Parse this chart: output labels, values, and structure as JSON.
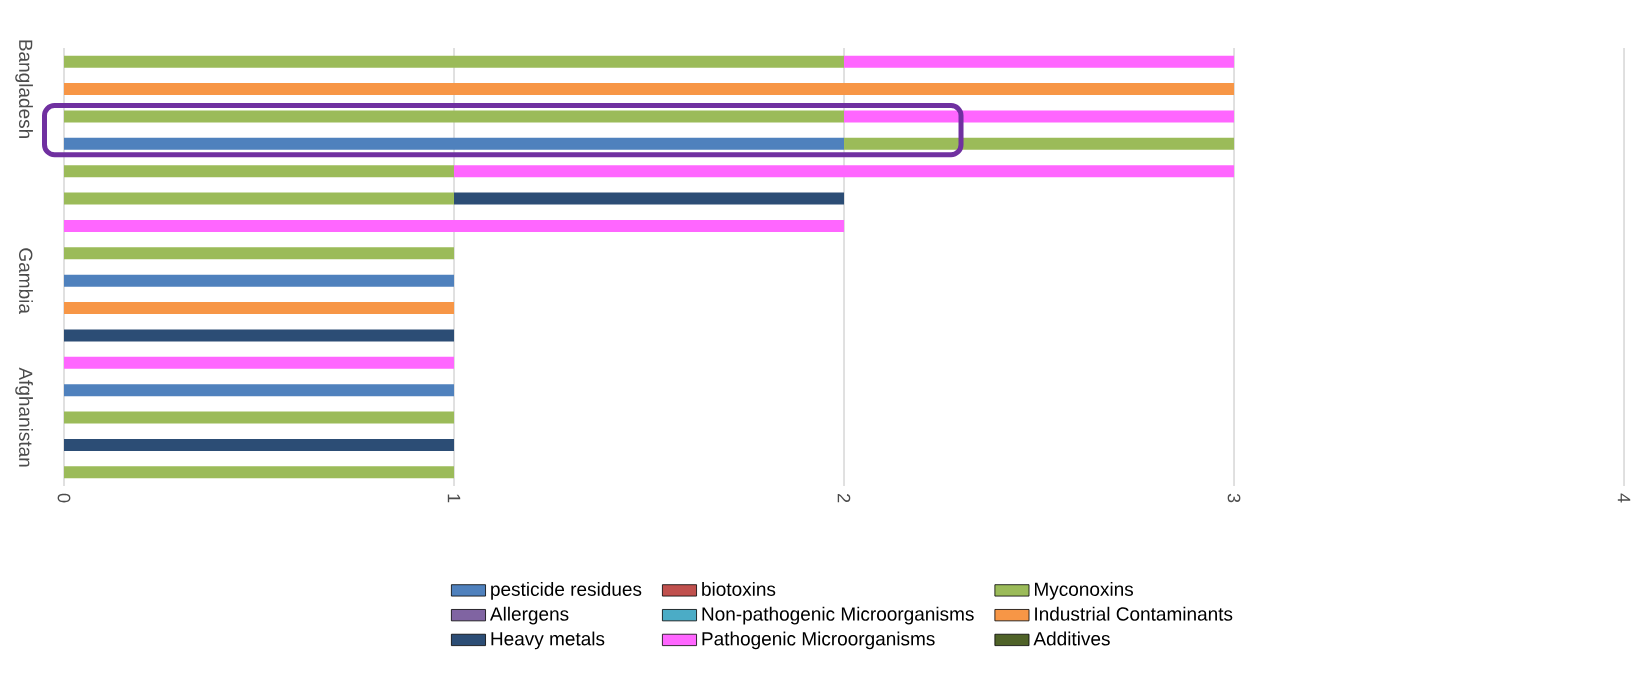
{
  "chart_data": {
    "type": "bar",
    "orientation": "horizontal",
    "stacked": true,
    "categories": [
      null,
      "Bangladesh",
      null,
      null,
      null,
      null,
      null,
      null,
      "Gambia",
      null,
      null,
      null,
      null,
      "Afghanistan",
      null,
      null
    ],
    "series": [
      {
        "name": "pesticide residues",
        "color": "#4f81bd",
        "values": [
          null,
          null,
          null,
          2,
          null,
          null,
          null,
          null,
          1,
          null,
          null,
          null,
          1,
          null,
          null,
          null
        ]
      },
      {
        "name": "biotoxins",
        "color": "#c0504d",
        "values": [
          null,
          null,
          null,
          null,
          null,
          null,
          null,
          null,
          null,
          null,
          null,
          null,
          null,
          null,
          null,
          null
        ]
      },
      {
        "name": "Myconoxins",
        "color": "#9bbb59",
        "values": [
          2,
          null,
          2,
          1,
          1,
          1,
          null,
          1,
          null,
          null,
          null,
          null,
          null,
          1,
          null,
          1
        ]
      },
      {
        "name": "Allergens",
        "color": "#8064a2",
        "values": [
          null,
          null,
          null,
          null,
          null,
          null,
          null,
          null,
          null,
          null,
          null,
          null,
          null,
          null,
          null,
          null
        ]
      },
      {
        "name": "Non-pathogenic Microorganisms",
        "color": "#4bacc6",
        "values": [
          null,
          null,
          null,
          null,
          null,
          null,
          null,
          null,
          null,
          null,
          null,
          null,
          null,
          null,
          null,
          null
        ]
      },
      {
        "name": "Industrial Contaminants",
        "color": "#f79646",
        "values": [
          null,
          3,
          null,
          null,
          null,
          null,
          null,
          null,
          null,
          1,
          null,
          null,
          null,
          null,
          null,
          null
        ]
      },
      {
        "name": "Heavy metals",
        "color": "#2c4d75",
        "values": [
          null,
          null,
          null,
          null,
          null,
          1,
          null,
          null,
          null,
          null,
          1,
          null,
          null,
          null,
          1,
          null
        ]
      },
      {
        "name": "Pathogenic Microorganisms",
        "color": "#ff66ff",
        "values": [
          1,
          null,
          1,
          null,
          2,
          null,
          2,
          null,
          null,
          null,
          null,
          1,
          null,
          null,
          null,
          null
        ]
      },
      {
        "name": "Additives",
        "color": "#4f6228",
        "values": [
          null,
          null,
          null,
          null,
          null,
          null,
          null,
          null,
          null,
          null,
          null,
          null,
          null,
          null,
          null,
          null
        ]
      }
    ],
    "xlim": [
      0,
      4
    ],
    "xticks": [
      0,
      1,
      2,
      3,
      4
    ],
    "grid": "x",
    "legend": "bottom"
  }
}
